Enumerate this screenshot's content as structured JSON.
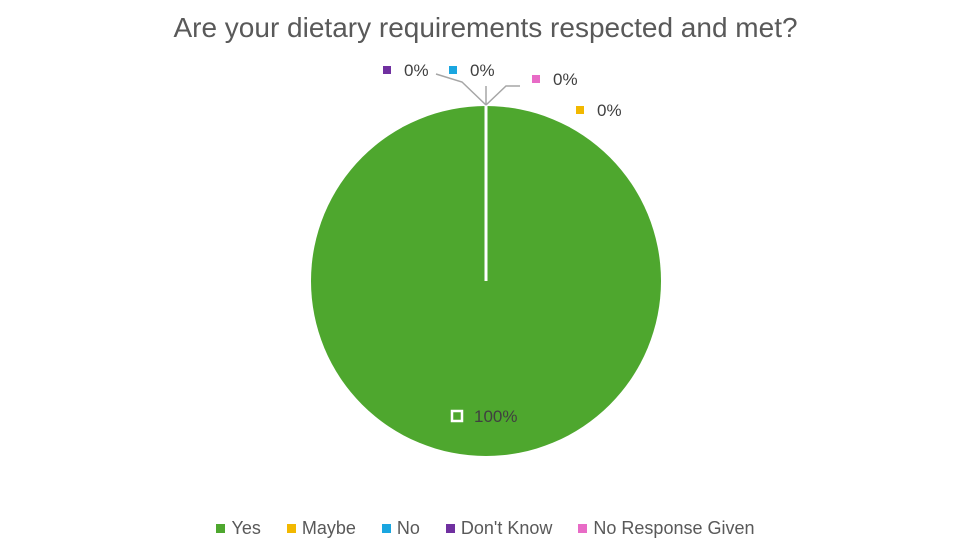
{
  "chart_data": {
    "type": "pie",
    "title": "Are your dietary requirements respected and met?",
    "categories": [
      "Yes",
      "Maybe",
      "No",
      "Don't Know",
      "No Response Given"
    ],
    "values": [
      100,
      0,
      0,
      0,
      0
    ],
    "data_labels": [
      "100%",
      "0%",
      "0%",
      "0%",
      "0%"
    ],
    "colors": [
      "#4ea72e",
      "#f2b800",
      "#1aa6e0",
      "#7030a0",
      "#e86bc6"
    ],
    "legend_position": "bottom"
  }
}
